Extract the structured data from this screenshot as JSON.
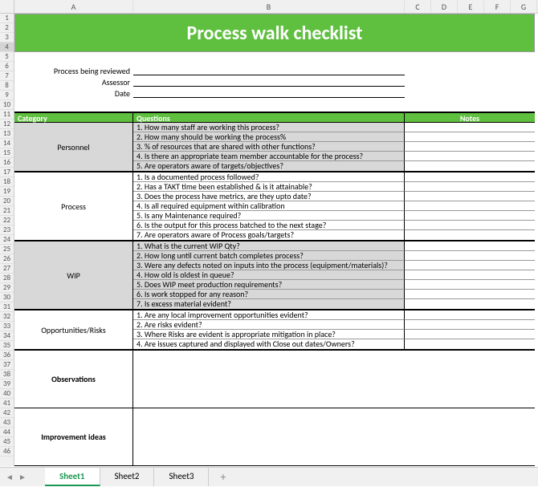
{
  "columns": [
    "A",
    "B",
    "C",
    "D",
    "E",
    "F",
    "G"
  ],
  "rows": [
    1,
    2,
    3,
    4,
    5,
    6,
    7,
    8,
    9,
    10,
    11,
    12,
    13,
    14,
    15,
    16,
    17,
    18,
    19,
    20,
    21,
    22,
    23,
    24,
    25,
    26,
    27,
    28,
    29,
    30,
    31,
    32,
    33,
    34,
    35,
    36,
    37,
    38,
    39,
    40,
    41,
    42,
    43,
    44,
    45,
    46
  ],
  "title": "Process walk checklist",
  "form": {
    "reviewed_label": "Process being reviewed",
    "assessor_label": "Assessor",
    "date_label": "Date"
  },
  "headers": {
    "category": "Category",
    "questions": "Questions",
    "notes": "Notes"
  },
  "sections": [
    {
      "category": "Personnel",
      "shaded": true,
      "questions": [
        "1.  How many staff are working this process?",
        "2.  How many should be working the process%",
        "3. % of resources that are shared with other functions?",
        "4. Is there an appropriate team member accountable for the process?",
        "5. Are operators aware of targets/objectives?"
      ]
    },
    {
      "category": "Process",
      "shaded": false,
      "questions": [
        "1. Is a documented process followed?",
        "2. Has a TAKT time been established & is it attainable?",
        "3. Does the process have metrics, are they upto date?",
        "4. Is all required equipment within calibration",
        "5. Is any Maintenance required?",
        "6. Is the output for this process batched to the next stage?",
        "7. Are operators aware of Process goals/targets?"
      ]
    },
    {
      "category": "WIP",
      "shaded": true,
      "questions": [
        "1.  What is the current WIP Qty?",
        "2.  How long until current batch completes process?",
        "3. Were any defects noted on inputs into the process (equipment/materials)?",
        "4. How old is oldest in queue?",
        "5. Does WIP meet production requirements?",
        "6. Is work stopped for any reason?",
        "7. Is excess material evident?"
      ]
    },
    {
      "category": "Opportunities/Risks",
      "shaded": false,
      "questions": [
        "1.  Are any local improvement opportunities evident?",
        "2.  Are risks evident?",
        "3. Where Risks are evident is appropriate mitigation in place?",
        "4. Are issues captured and displayed with Close out dates/Owners?"
      ]
    }
  ],
  "blank_sections": [
    {
      "label": "Observations",
      "height": 72
    },
    {
      "label": "Improvement ideas",
      "height": 72
    }
  ],
  "tabs": {
    "list": [
      "Sheet1",
      "Sheet2",
      "Sheet3"
    ],
    "active": 0,
    "add": "+",
    "prev": "◄",
    "next": "►"
  }
}
